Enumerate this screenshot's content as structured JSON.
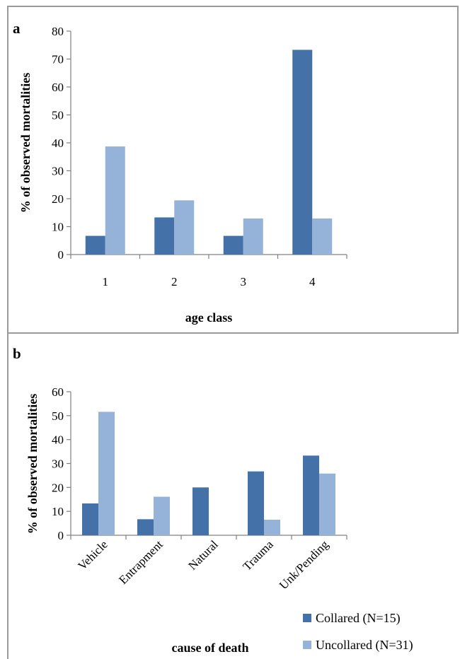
{
  "colors": {
    "collared": "#4472a8",
    "uncollared": "#95b2d9",
    "axis": "#808080",
    "frame": "#9a9a9a"
  },
  "legend": {
    "collared": "Collared (N=15)",
    "uncollared": "Uncollared (N=31)"
  },
  "chart_data": [
    {
      "panel_label": "a",
      "type": "bar",
      "categories": [
        "1",
        "2",
        "3",
        "4"
      ],
      "series": [
        {
          "name": "Collared (N=15)",
          "values": [
            6.7,
            13.3,
            6.7,
            73.3
          ]
        },
        {
          "name": "Uncollared (N=31)",
          "values": [
            38.7,
            19.4,
            12.9,
            12.9
          ]
        }
      ],
      "xlabel": "age class",
      "ylabel": "% of observed mortalities",
      "ylim": [
        0,
        80
      ],
      "yticks": [
        0,
        10,
        20,
        30,
        40,
        50,
        60,
        70,
        80
      ],
      "grid": false
    },
    {
      "panel_label": "b",
      "type": "bar",
      "categories": [
        "Vehicle",
        "Entrapment",
        "Natural",
        "Trauma",
        "Unk/Pending"
      ],
      "series": [
        {
          "name": "Collared (N=15)",
          "values": [
            13.3,
            6.7,
            20.0,
            26.7,
            33.3
          ]
        },
        {
          "name": "Uncollared (N=31)",
          "values": [
            51.6,
            16.1,
            0,
            6.5,
            25.8
          ]
        }
      ],
      "xlabel": "cause of death",
      "ylabel": "% of observed mortalities",
      "ylim": [
        0,
        60
      ],
      "yticks": [
        0,
        10,
        20,
        30,
        40,
        50,
        60
      ],
      "grid": false,
      "legend_position": "bottom-right"
    }
  ]
}
